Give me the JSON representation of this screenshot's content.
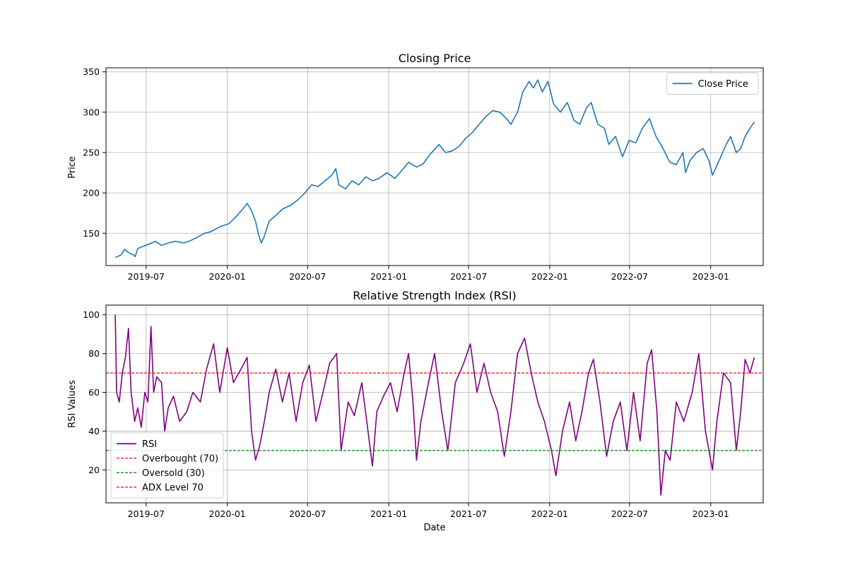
{
  "chart_data": [
    {
      "type": "line",
      "title": "Closing Price",
      "xlabel": "",
      "ylabel": "Price",
      "x_range": [
        "2019-04-01",
        "2023-04-30"
      ],
      "ylim": [
        110,
        355
      ],
      "x_ticks": [
        "2019-07",
        "2020-01",
        "2020-07",
        "2021-01",
        "2021-07",
        "2022-01",
        "2022-07",
        "2023-01"
      ],
      "y_ticks": [
        150,
        200,
        250,
        300,
        350
      ],
      "grid": true,
      "legend_position": "upper-right",
      "series": [
        {
          "name": "Close Price",
          "color": "#1f77b4",
          "points": [
            [
              "2019-04-22",
              120
            ],
            [
              "2019-05-05",
              123
            ],
            [
              "2019-05-13",
              130
            ],
            [
              "2019-05-22",
              126
            ],
            [
              "2019-06-03",
              123
            ],
            [
              "2019-06-06",
              121
            ],
            [
              "2019-06-12",
              131
            ],
            [
              "2019-06-20",
              133
            ],
            [
              "2019-07-05",
              136
            ],
            [
              "2019-07-22",
              140
            ],
            [
              "2019-08-05",
              135
            ],
            [
              "2019-08-20",
              138
            ],
            [
              "2019-09-05",
              140
            ],
            [
              "2019-09-25",
              138
            ],
            [
              "2019-10-10",
              141
            ],
            [
              "2019-10-25",
              145
            ],
            [
              "2019-11-10",
              150
            ],
            [
              "2019-11-25",
              152
            ],
            [
              "2019-12-15",
              158
            ],
            [
              "2020-01-05",
              162
            ],
            [
              "2020-01-20",
              170
            ],
            [
              "2020-02-05",
              180
            ],
            [
              "2020-02-15",
              187
            ],
            [
              "2020-02-25",
              178
            ],
            [
              "2020-03-05",
              165
            ],
            [
              "2020-03-12",
              148
            ],
            [
              "2020-03-18",
              138
            ],
            [
              "2020-03-24",
              145
            ],
            [
              "2020-04-05",
              165
            ],
            [
              "2020-04-20",
              172
            ],
            [
              "2020-05-05",
              180
            ],
            [
              "2020-05-25",
              185
            ],
            [
              "2020-06-10",
              192
            ],
            [
              "2020-06-25",
              200
            ],
            [
              "2020-07-10",
              210
            ],
            [
              "2020-07-25",
              208
            ],
            [
              "2020-08-10",
              215
            ],
            [
              "2020-08-25",
              222
            ],
            [
              "2020-09-03",
              230
            ],
            [
              "2020-09-10",
              210
            ],
            [
              "2020-09-25",
              205
            ],
            [
              "2020-10-10",
              215
            ],
            [
              "2020-10-25",
              210
            ],
            [
              "2020-11-10",
              220
            ],
            [
              "2020-11-25",
              215
            ],
            [
              "2020-12-10",
              218
            ],
            [
              "2020-12-28",
              225
            ],
            [
              "2021-01-15",
              218
            ],
            [
              "2021-01-31",
              228
            ],
            [
              "2021-02-15",
              238
            ],
            [
              "2021-03-05",
              232
            ],
            [
              "2021-03-20",
              236
            ],
            [
              "2021-04-05",
              248
            ],
            [
              "2021-04-25",
              260
            ],
            [
              "2021-05-10",
              250
            ],
            [
              "2021-05-25",
              252
            ],
            [
              "2021-06-10",
              258
            ],
            [
              "2021-06-25",
              268
            ],
            [
              "2021-07-10",
              275
            ],
            [
              "2021-07-25",
              285
            ],
            [
              "2021-08-10",
              295
            ],
            [
              "2021-08-25",
              302
            ],
            [
              "2021-09-10",
              300
            ],
            [
              "2021-09-25",
              292
            ],
            [
              "2021-10-05",
              285
            ],
            [
              "2021-10-20",
              300
            ],
            [
              "2021-11-01",
              325
            ],
            [
              "2021-11-15",
              338
            ],
            [
              "2021-11-25",
              330
            ],
            [
              "2021-12-05",
              340
            ],
            [
              "2021-12-15",
              325
            ],
            [
              "2021-12-28",
              338
            ],
            [
              "2022-01-10",
              310
            ],
            [
              "2022-01-25",
              300
            ],
            [
              "2022-02-10",
              312
            ],
            [
              "2022-02-25",
              290
            ],
            [
              "2022-03-10",
              285
            ],
            [
              "2022-03-25",
              305
            ],
            [
              "2022-04-05",
              312
            ],
            [
              "2022-04-20",
              285
            ],
            [
              "2022-05-05",
              280
            ],
            [
              "2022-05-15",
              260
            ],
            [
              "2022-05-30",
              270
            ],
            [
              "2022-06-15",
              245
            ],
            [
              "2022-06-30",
              265
            ],
            [
              "2022-07-15",
              262
            ],
            [
              "2022-07-30",
              280
            ],
            [
              "2022-08-15",
              292
            ],
            [
              "2022-08-30",
              270
            ],
            [
              "2022-09-15",
              255
            ],
            [
              "2022-09-30",
              238
            ],
            [
              "2022-10-15",
              235
            ],
            [
              "2022-10-30",
              250
            ],
            [
              "2022-11-05",
              225
            ],
            [
              "2022-11-15",
              240
            ],
            [
              "2022-11-30",
              250
            ],
            [
              "2022-12-15",
              255
            ],
            [
              "2022-12-28",
              240
            ],
            [
              "2023-01-05",
              222
            ],
            [
              "2023-01-20",
              240
            ],
            [
              "2023-02-05",
              260
            ],
            [
              "2023-02-15",
              270
            ],
            [
              "2023-02-28",
              250
            ],
            [
              "2023-03-10",
              255
            ],
            [
              "2023-03-20",
              270
            ],
            [
              "2023-03-31",
              280
            ],
            [
              "2023-04-10",
              288
            ]
          ]
        }
      ]
    },
    {
      "type": "line",
      "title": "Relative Strength Index (RSI)",
      "xlabel": "Date",
      "ylabel": "RSI Values",
      "x_range": [
        "2019-04-01",
        "2023-04-30"
      ],
      "ylim": [
        3,
        105
      ],
      "x_ticks": [
        "2019-07",
        "2020-01",
        "2020-07",
        "2021-01",
        "2021-07",
        "2022-01",
        "2022-07",
        "2023-01"
      ],
      "y_ticks": [
        20,
        40,
        60,
        80,
        100
      ],
      "grid": true,
      "legend_position": "lower-left",
      "series": [
        {
          "name": "RSI",
          "color": "#800080",
          "points": [
            [
              "2019-04-22",
              100
            ],
            [
              "2019-04-25",
              60
            ],
            [
              "2019-05-01",
              55
            ],
            [
              "2019-05-08",
              70
            ],
            [
              "2019-05-15",
              78
            ],
            [
              "2019-05-22",
              93
            ],
            [
              "2019-05-28",
              60
            ],
            [
              "2019-06-05",
              45
            ],
            [
              "2019-06-12",
              52
            ],
            [
              "2019-06-20",
              42
            ],
            [
              "2019-06-28",
              60
            ],
            [
              "2019-07-05",
              55
            ],
            [
              "2019-07-12",
              94
            ],
            [
              "2019-07-18",
              60
            ],
            [
              "2019-07-25",
              68
            ],
            [
              "2019-08-05",
              65
            ],
            [
              "2019-08-12",
              40
            ],
            [
              "2019-08-20",
              52
            ],
            [
              "2019-09-01",
              58
            ],
            [
              "2019-09-15",
              45
            ],
            [
              "2019-10-01",
              50
            ],
            [
              "2019-10-15",
              60
            ],
            [
              "2019-11-01",
              55
            ],
            [
              "2019-11-15",
              72
            ],
            [
              "2019-12-01",
              85
            ],
            [
              "2019-12-15",
              60
            ],
            [
              "2020-01-01",
              83
            ],
            [
              "2020-01-15",
              65
            ],
            [
              "2020-02-01",
              72
            ],
            [
              "2020-02-15",
              78
            ],
            [
              "2020-02-25",
              40
            ],
            [
              "2020-03-05",
              25
            ],
            [
              "2020-03-15",
              33
            ],
            [
              "2020-03-25",
              45
            ],
            [
              "2020-04-05",
              60
            ],
            [
              "2020-04-20",
              72
            ],
            [
              "2020-05-05",
              55
            ],
            [
              "2020-05-20",
              70
            ],
            [
              "2020-06-05",
              45
            ],
            [
              "2020-06-20",
              65
            ],
            [
              "2020-07-05",
              74
            ],
            [
              "2020-07-20",
              45
            ],
            [
              "2020-08-05",
              60
            ],
            [
              "2020-08-20",
              75
            ],
            [
              "2020-09-05",
              80
            ],
            [
              "2020-09-15",
              30
            ],
            [
              "2020-10-01",
              55
            ],
            [
              "2020-10-15",
              48
            ],
            [
              "2020-11-01",
              65
            ],
            [
              "2020-11-15",
              40
            ],
            [
              "2020-11-25",
              22
            ],
            [
              "2020-12-05",
              50
            ],
            [
              "2020-12-20",
              58
            ],
            [
              "2021-01-05",
              65
            ],
            [
              "2021-01-20",
              50
            ],
            [
              "2021-02-05",
              70
            ],
            [
              "2021-02-15",
              80
            ],
            [
              "2021-02-25",
              55
            ],
            [
              "2021-03-05",
              25
            ],
            [
              "2021-03-15",
              45
            ],
            [
              "2021-04-01",
              65
            ],
            [
              "2021-04-15",
              80
            ],
            [
              "2021-05-01",
              50
            ],
            [
              "2021-05-15",
              30
            ],
            [
              "2021-06-01",
              65
            ],
            [
              "2021-06-20",
              75
            ],
            [
              "2021-07-05",
              85
            ],
            [
              "2021-07-20",
              60
            ],
            [
              "2021-08-05",
              75
            ],
            [
              "2021-08-20",
              60
            ],
            [
              "2021-09-05",
              50
            ],
            [
              "2021-09-20",
              27
            ],
            [
              "2021-10-05",
              50
            ],
            [
              "2021-10-20",
              80
            ],
            [
              "2021-11-05",
              88
            ],
            [
              "2021-11-20",
              70
            ],
            [
              "2021-12-05",
              55
            ],
            [
              "2021-12-20",
              45
            ],
            [
              "2022-01-05",
              30
            ],
            [
              "2022-01-15",
              17
            ],
            [
              "2022-01-30",
              40
            ],
            [
              "2022-02-15",
              55
            ],
            [
              "2022-03-01",
              35
            ],
            [
              "2022-03-15",
              50
            ],
            [
              "2022-03-30",
              70
            ],
            [
              "2022-04-10",
              77
            ],
            [
              "2022-04-25",
              55
            ],
            [
              "2022-05-10",
              27
            ],
            [
              "2022-05-25",
              45
            ],
            [
              "2022-06-10",
              55
            ],
            [
              "2022-06-25",
              30
            ],
            [
              "2022-07-10",
              60
            ],
            [
              "2022-07-25",
              35
            ],
            [
              "2022-08-10",
              75
            ],
            [
              "2022-08-20",
              82
            ],
            [
              "2022-09-01",
              50
            ],
            [
              "2022-09-10",
              7
            ],
            [
              "2022-09-20",
              30
            ],
            [
              "2022-10-01",
              25
            ],
            [
              "2022-10-15",
              55
            ],
            [
              "2022-11-01",
              45
            ],
            [
              "2022-11-20",
              60
            ],
            [
              "2022-12-05",
              80
            ],
            [
              "2022-12-20",
              40
            ],
            [
              "2023-01-05",
              20
            ],
            [
              "2023-01-15",
              45
            ],
            [
              "2023-01-30",
              70
            ],
            [
              "2023-02-15",
              65
            ],
            [
              "2023-02-28",
              30
            ],
            [
              "2023-03-10",
              50
            ],
            [
              "2023-03-20",
              77
            ],
            [
              "2023-03-31",
              70
            ],
            [
              "2023-04-10",
              78
            ]
          ]
        },
        {
          "name": "Overbought (70)",
          "color": "#ff0000",
          "dashed": true,
          "level": 70
        },
        {
          "name": "Oversold (30)",
          "color": "#008000",
          "dashed": true,
          "level": 30
        },
        {
          "name": "ADX Level 70",
          "color": "#ff0000",
          "dashed": true,
          "level": 70
        }
      ]
    }
  ]
}
